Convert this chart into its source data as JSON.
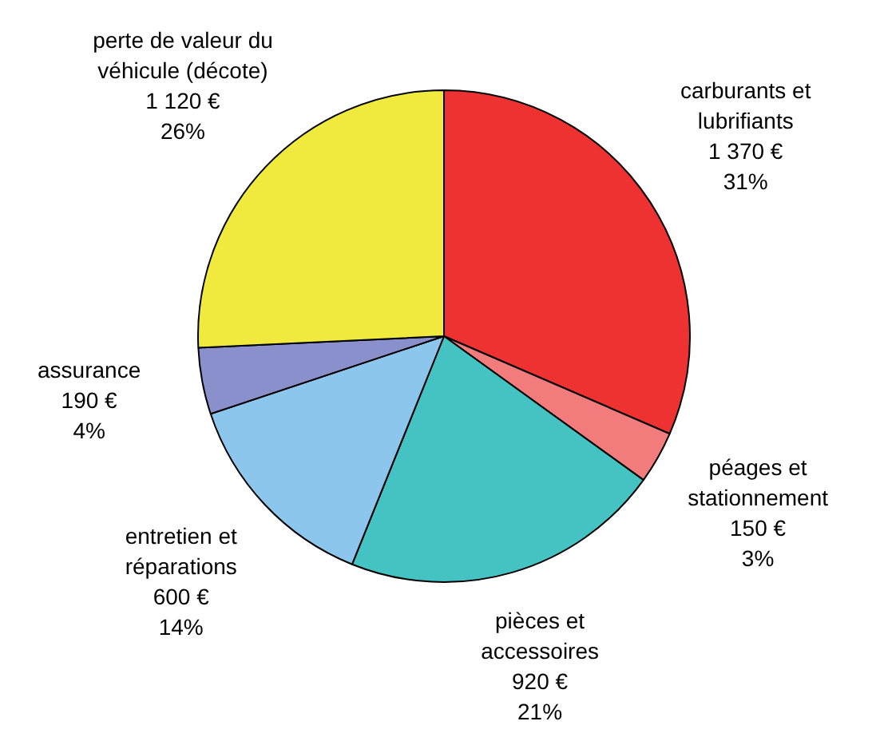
{
  "chart_data": {
    "type": "pie",
    "categories": [
      "carburants et\nlubrifiants",
      "péages et\nstationnement",
      "pièces et\naccessoires",
      "entretien et\nréparations",
      "assurance",
      "perte de valeur du\nvéhicule (décote)"
    ],
    "values": [
      1370,
      150,
      920,
      600,
      190,
      1120
    ],
    "colors": [
      "#ee3131",
      "#f27b7b",
      "#45c3c3",
      "#8dc6ec",
      "#8990cb",
      "#f0ea3e"
    ],
    "value_labels": [
      "1 370 €\n31%",
      "150 €\n3%",
      "920 €\n21%",
      "600 €\n14%",
      "190 €\n4%",
      "1 120 €\n26%"
    ],
    "legend": false
  }
}
